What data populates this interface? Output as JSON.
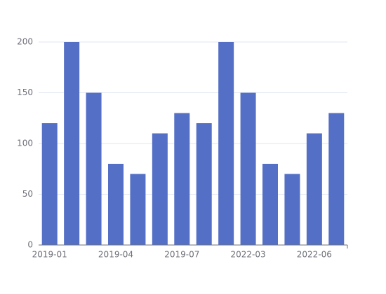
{
  "chart_data": {
    "type": "bar",
    "categories": [
      "2019-01",
      null,
      null,
      "2019-04",
      null,
      null,
      "2019-07",
      null,
      null,
      "2022-03",
      null,
      null,
      "2022-06",
      null
    ],
    "values": [
      120,
      200,
      150,
      80,
      70,
      110,
      130,
      120,
      200,
      150,
      80,
      70,
      110,
      130
    ],
    "color": "#5470c6",
    "ylim": [
      0,
      200
    ],
    "yticks": [
      0,
      50,
      100,
      150,
      200
    ],
    "grid": true
  }
}
